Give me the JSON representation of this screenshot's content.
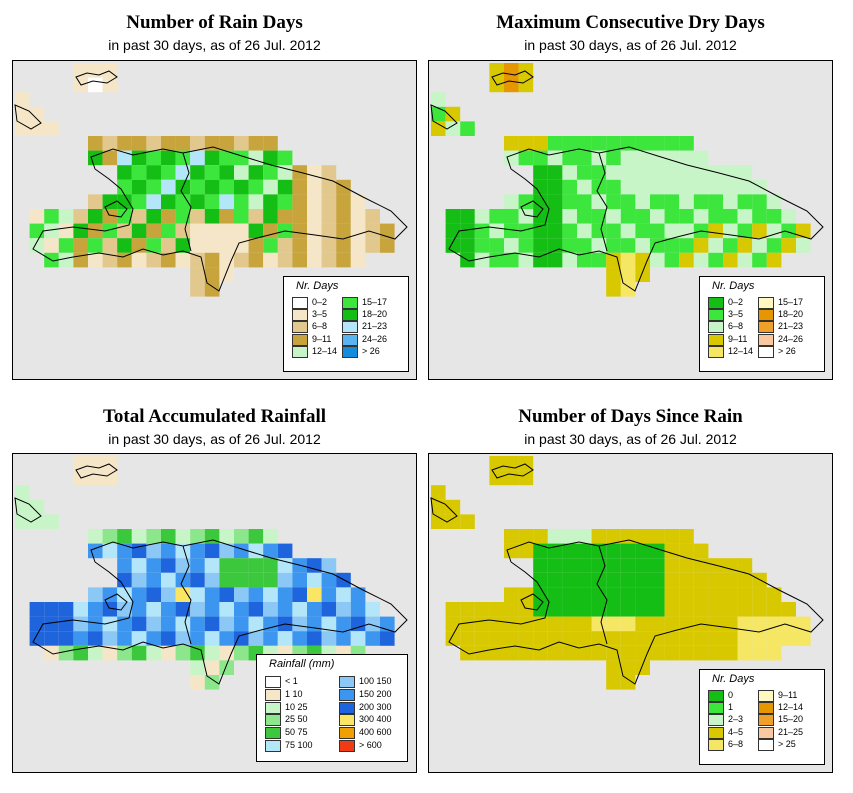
{
  "panels": [
    {
      "title": "Number of Rain Days",
      "subtitle": "in past 30 days, as of  26 Jul. 2012",
      "legend_title": "Nr. Days",
      "legend_items": [
        {
          "label": "0–2",
          "color": "#ffffff"
        },
        {
          "label": "3–5",
          "color": "#f5e6c8"
        },
        {
          "label": "6–8",
          "color": "#e2c88c"
        },
        {
          "label": "9–11",
          "color": "#c8a53c"
        },
        {
          "label": "12–14",
          "color": "#c8f5c8"
        },
        {
          "label": "15–17",
          "color": "#3ce63c"
        },
        {
          "label": "18–20",
          "color": "#14be14"
        },
        {
          "label": "21–23",
          "color": "#b4e6fa"
        },
        {
          "label": "24–26",
          "color": "#5ab4f0"
        },
        {
          "label": "> 26",
          "color": "#148cdc"
        }
      ]
    },
    {
      "title": "Maximum Consecutive Dry Days",
      "subtitle": "in past 30 days, as of  26 Jul. 2012",
      "legend_title": "Nr. Days",
      "legend_items": [
        {
          "label": "0–2",
          "color": "#14be14"
        },
        {
          "label": "3–5",
          "color": "#3ce63c"
        },
        {
          "label": "6–8",
          "color": "#c8f5c8"
        },
        {
          "label": "9–11",
          "color": "#d8c800"
        },
        {
          "label": "12–14",
          "color": "#f5e664"
        },
        {
          "label": "15–17",
          "color": "#fff8c0"
        },
        {
          "label": "18–20",
          "color": "#e69600"
        },
        {
          "label": "21–23",
          "color": "#f0a028"
        },
        {
          "label": "24–26",
          "color": "#fac8a0"
        },
        {
          "label": "> 26",
          "color": "#ffffff"
        }
      ]
    },
    {
      "title": "Total Accumulated Rainfall",
      "subtitle": "in past 30 days, as of  26 Jul. 2012",
      "legend_title": "Rainfall (mm)",
      "legend_items": [
        {
          "label": "< 1",
          "color": "#ffffff"
        },
        {
          "label": "1   10",
          "color": "#f5e6c8"
        },
        {
          "label": "10   25",
          "color": "#c8f5c8"
        },
        {
          "label": "25   50",
          "color": "#8ce68c"
        },
        {
          "label": "50   75",
          "color": "#3cc83c"
        },
        {
          "label": "75   100",
          "color": "#b4e6fa"
        },
        {
          "label": "100  150",
          "color": "#8cc8f5"
        },
        {
          "label": "150  200",
          "color": "#3c96f0"
        },
        {
          "label": "200  300",
          "color": "#1e64dc"
        },
        {
          "label": "300  400",
          "color": "#fae664"
        },
        {
          "label": "400  600",
          "color": "#f0a000"
        },
        {
          "label": "> 600",
          "color": "#f03c14"
        }
      ]
    },
    {
      "title": "Number of Days Since Rain",
      "subtitle": "in past 30 days, as of  26 Jul. 2012",
      "legend_title": "Nr. Days",
      "legend_items": [
        {
          "label": "0",
          "color": "#14be14"
        },
        {
          "label": "1",
          "color": "#3ce63c"
        },
        {
          "label": "2–3",
          "color": "#c8f5c8"
        },
        {
          "label": "4–5",
          "color": "#d8c800"
        },
        {
          "label": "6–8",
          "color": "#f5e664"
        },
        {
          "label": "9–11",
          "color": "#fff8c0"
        },
        {
          "label": "12–14",
          "color": "#e69600"
        },
        {
          "label": "15–20",
          "color": "#f0a028"
        },
        {
          "label": "21–25",
          "color": "#fac8a0"
        },
        {
          "label": "> 25",
          "color": "#ffffff"
        }
      ]
    }
  ]
}
